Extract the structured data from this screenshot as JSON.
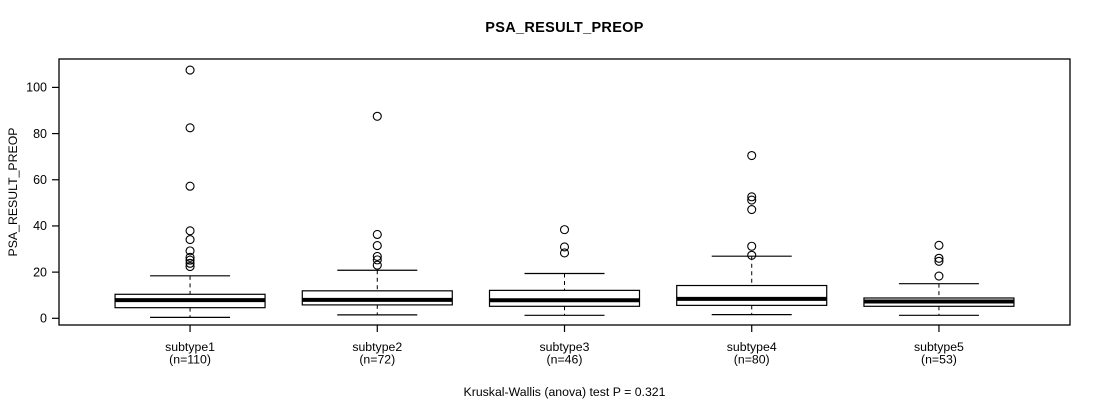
{
  "chart_data": {
    "type": "boxplot",
    "title": "PSA_RESULT_PREOP",
    "ylabel": "PSA_RESULT_PREOP",
    "caption": "Kruskal-Wallis (anova) test P = 0.321",
    "y_ticks": [
      0,
      20,
      40,
      60,
      80,
      100
    ],
    "ylim": [
      -2.9,
      112.3
    ],
    "grid": false,
    "legend": false,
    "line_color": "#000000",
    "box_fill": "#ffffff",
    "groups": [
      {
        "label": "subtype1",
        "n_label": "(n=110)",
        "n": 110,
        "whisker_low": 0.4,
        "q1": 4.6,
        "median": 7.9,
        "q3": 10.4,
        "whisker_high": 18.4,
        "outliers": [
          22.4,
          23.8,
          25.2,
          26.4,
          29.2,
          34.1,
          37.9,
          57.2,
          82.5,
          107.5
        ]
      },
      {
        "label": "subtype2",
        "n_label": "(n=72)",
        "n": 72,
        "whisker_low": 1.5,
        "q1": 5.8,
        "median": 8.0,
        "q3": 11.9,
        "whisker_high": 20.8,
        "outliers": [
          23.0,
          25.3,
          26.8,
          31.5,
          36.3,
          87.5
        ]
      },
      {
        "label": "subtype3",
        "n_label": "(n=46)",
        "n": 46,
        "whisker_low": 1.3,
        "q1": 5.2,
        "median": 7.8,
        "q3": 12.1,
        "whisker_high": 19.4,
        "outliers": [
          28.3,
          30.9,
          38.4
        ]
      },
      {
        "label": "subtype4",
        "n_label": "(n=80)",
        "n": 80,
        "whisker_low": 1.6,
        "q1": 5.6,
        "median": 8.4,
        "q3": 14.2,
        "whisker_high": 26.9,
        "outliers": [
          27.3,
          31.2,
          47.1,
          51.2,
          52.6,
          70.5
        ]
      },
      {
        "label": "subtype5",
        "n_label": "(n=53)",
        "n": 53,
        "whisker_low": 1.3,
        "q1": 5.2,
        "median": 7.3,
        "q3": 8.8,
        "whisker_high": 15.0,
        "outliers": [
          18.3,
          24.7,
          26.0,
          31.6
        ]
      }
    ]
  }
}
